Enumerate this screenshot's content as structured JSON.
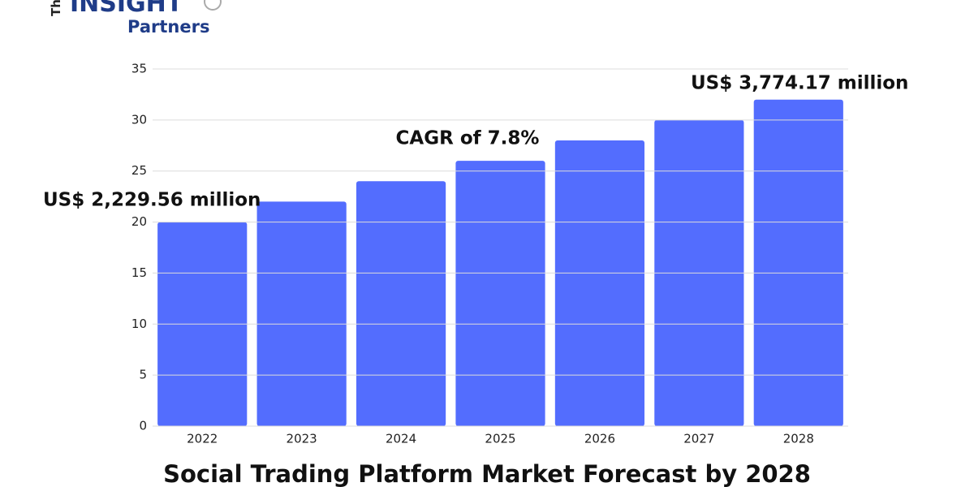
{
  "logo": {
    "prefix": "The",
    "name": "INSIGHT",
    "sub": "Partners"
  },
  "chart_data": {
    "type": "bar",
    "title": "Social Trading Platform Market Forecast by 2028",
    "categories": [
      "2022",
      "2023",
      "2024",
      "2025",
      "2026",
      "2027",
      "2028"
    ],
    "values": [
      20,
      22,
      24,
      26,
      28,
      30,
      32
    ],
    "color": "#536dfe",
    "ylim": [
      0,
      35
    ],
    "yticks": [
      0,
      5,
      10,
      15,
      20,
      25,
      30,
      35
    ],
    "grid": true,
    "annotations": [
      "US$ 2,229.56 million",
      "CAGR of 7.8%",
      "US$ 3,774.17 million"
    ]
  }
}
